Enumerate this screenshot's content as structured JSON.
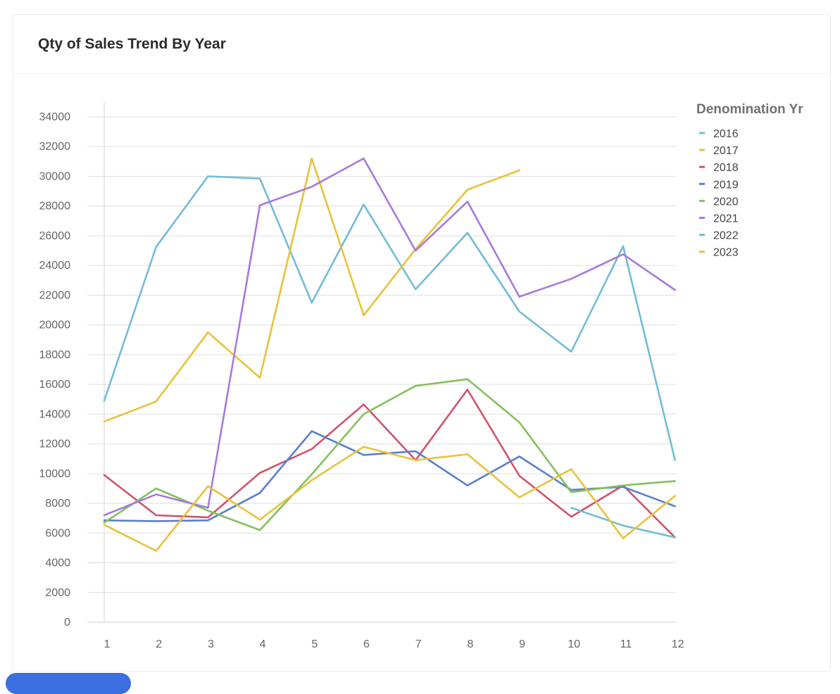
{
  "card": {
    "title": "Qty of Sales Trend By Year"
  },
  "chart_data": {
    "type": "line",
    "title": "Qty of Sales Trend By Year",
    "xlabel": "",
    "ylabel": "",
    "x": [
      1,
      2,
      3,
      4,
      5,
      6,
      7,
      8,
      9,
      10,
      11,
      12
    ],
    "ylim": [
      0,
      34000
    ],
    "yticks": [
      0,
      2000,
      4000,
      6000,
      8000,
      10000,
      12000,
      14000,
      16000,
      18000,
      20000,
      22000,
      24000,
      26000,
      28000,
      30000,
      32000,
      34000
    ],
    "grid": "horizontal",
    "legend": {
      "title": "Denomination Yr",
      "placement": "right"
    },
    "series": [
      {
        "name": "2016",
        "color": "#72bcd8",
        "values": [
          14900,
          25250,
          30000,
          29850,
          21500,
          28100,
          22400,
          26200,
          20900,
          18200,
          25300,
          10900
        ]
      },
      {
        "name": "2017",
        "color": "#e8c23a",
        "values": [
          13500,
          14850,
          19500,
          16450,
          31200,
          20650,
          25100,
          29100,
          30400,
          null,
          null,
          null
        ]
      },
      {
        "name": "2018",
        "color": "#d1526c",
        "values": [
          9900,
          7200,
          7050,
          10050,
          11650,
          14650,
          10900,
          15650,
          9850,
          7100,
          9200,
          5700
        ]
      },
      {
        "name": "2019",
        "color": "#5a7fcb",
        "values": [
          6850,
          6800,
          6850,
          8700,
          12850,
          11250,
          11500,
          9200,
          11150,
          8900,
          9100,
          7800
        ]
      },
      {
        "name": "2020",
        "color": "#83c15c",
        "values": [
          6700,
          9000,
          7500,
          6200,
          9950,
          14000,
          15900,
          16350,
          13450,
          8750,
          9200,
          9500
        ]
      },
      {
        "name": "2021",
        "color": "#a77ad9",
        "values": [
          7200,
          8600,
          7700,
          28050,
          29300,
          31200,
          25000,
          28300,
          21900,
          23100,
          24750,
          22350
        ]
      },
      {
        "name": "2022",
        "color": "#72bcd8",
        "values": [
          null,
          null,
          null,
          null,
          null,
          null,
          null,
          null,
          null,
          7700,
          6500,
          5700
        ]
      },
      {
        "name": "2023",
        "color": "#e8c23a",
        "values": [
          6550,
          4800,
          9150,
          6900,
          9550,
          11800,
          10900,
          11300,
          8400,
          10300,
          5650,
          8500
        ]
      }
    ]
  }
}
